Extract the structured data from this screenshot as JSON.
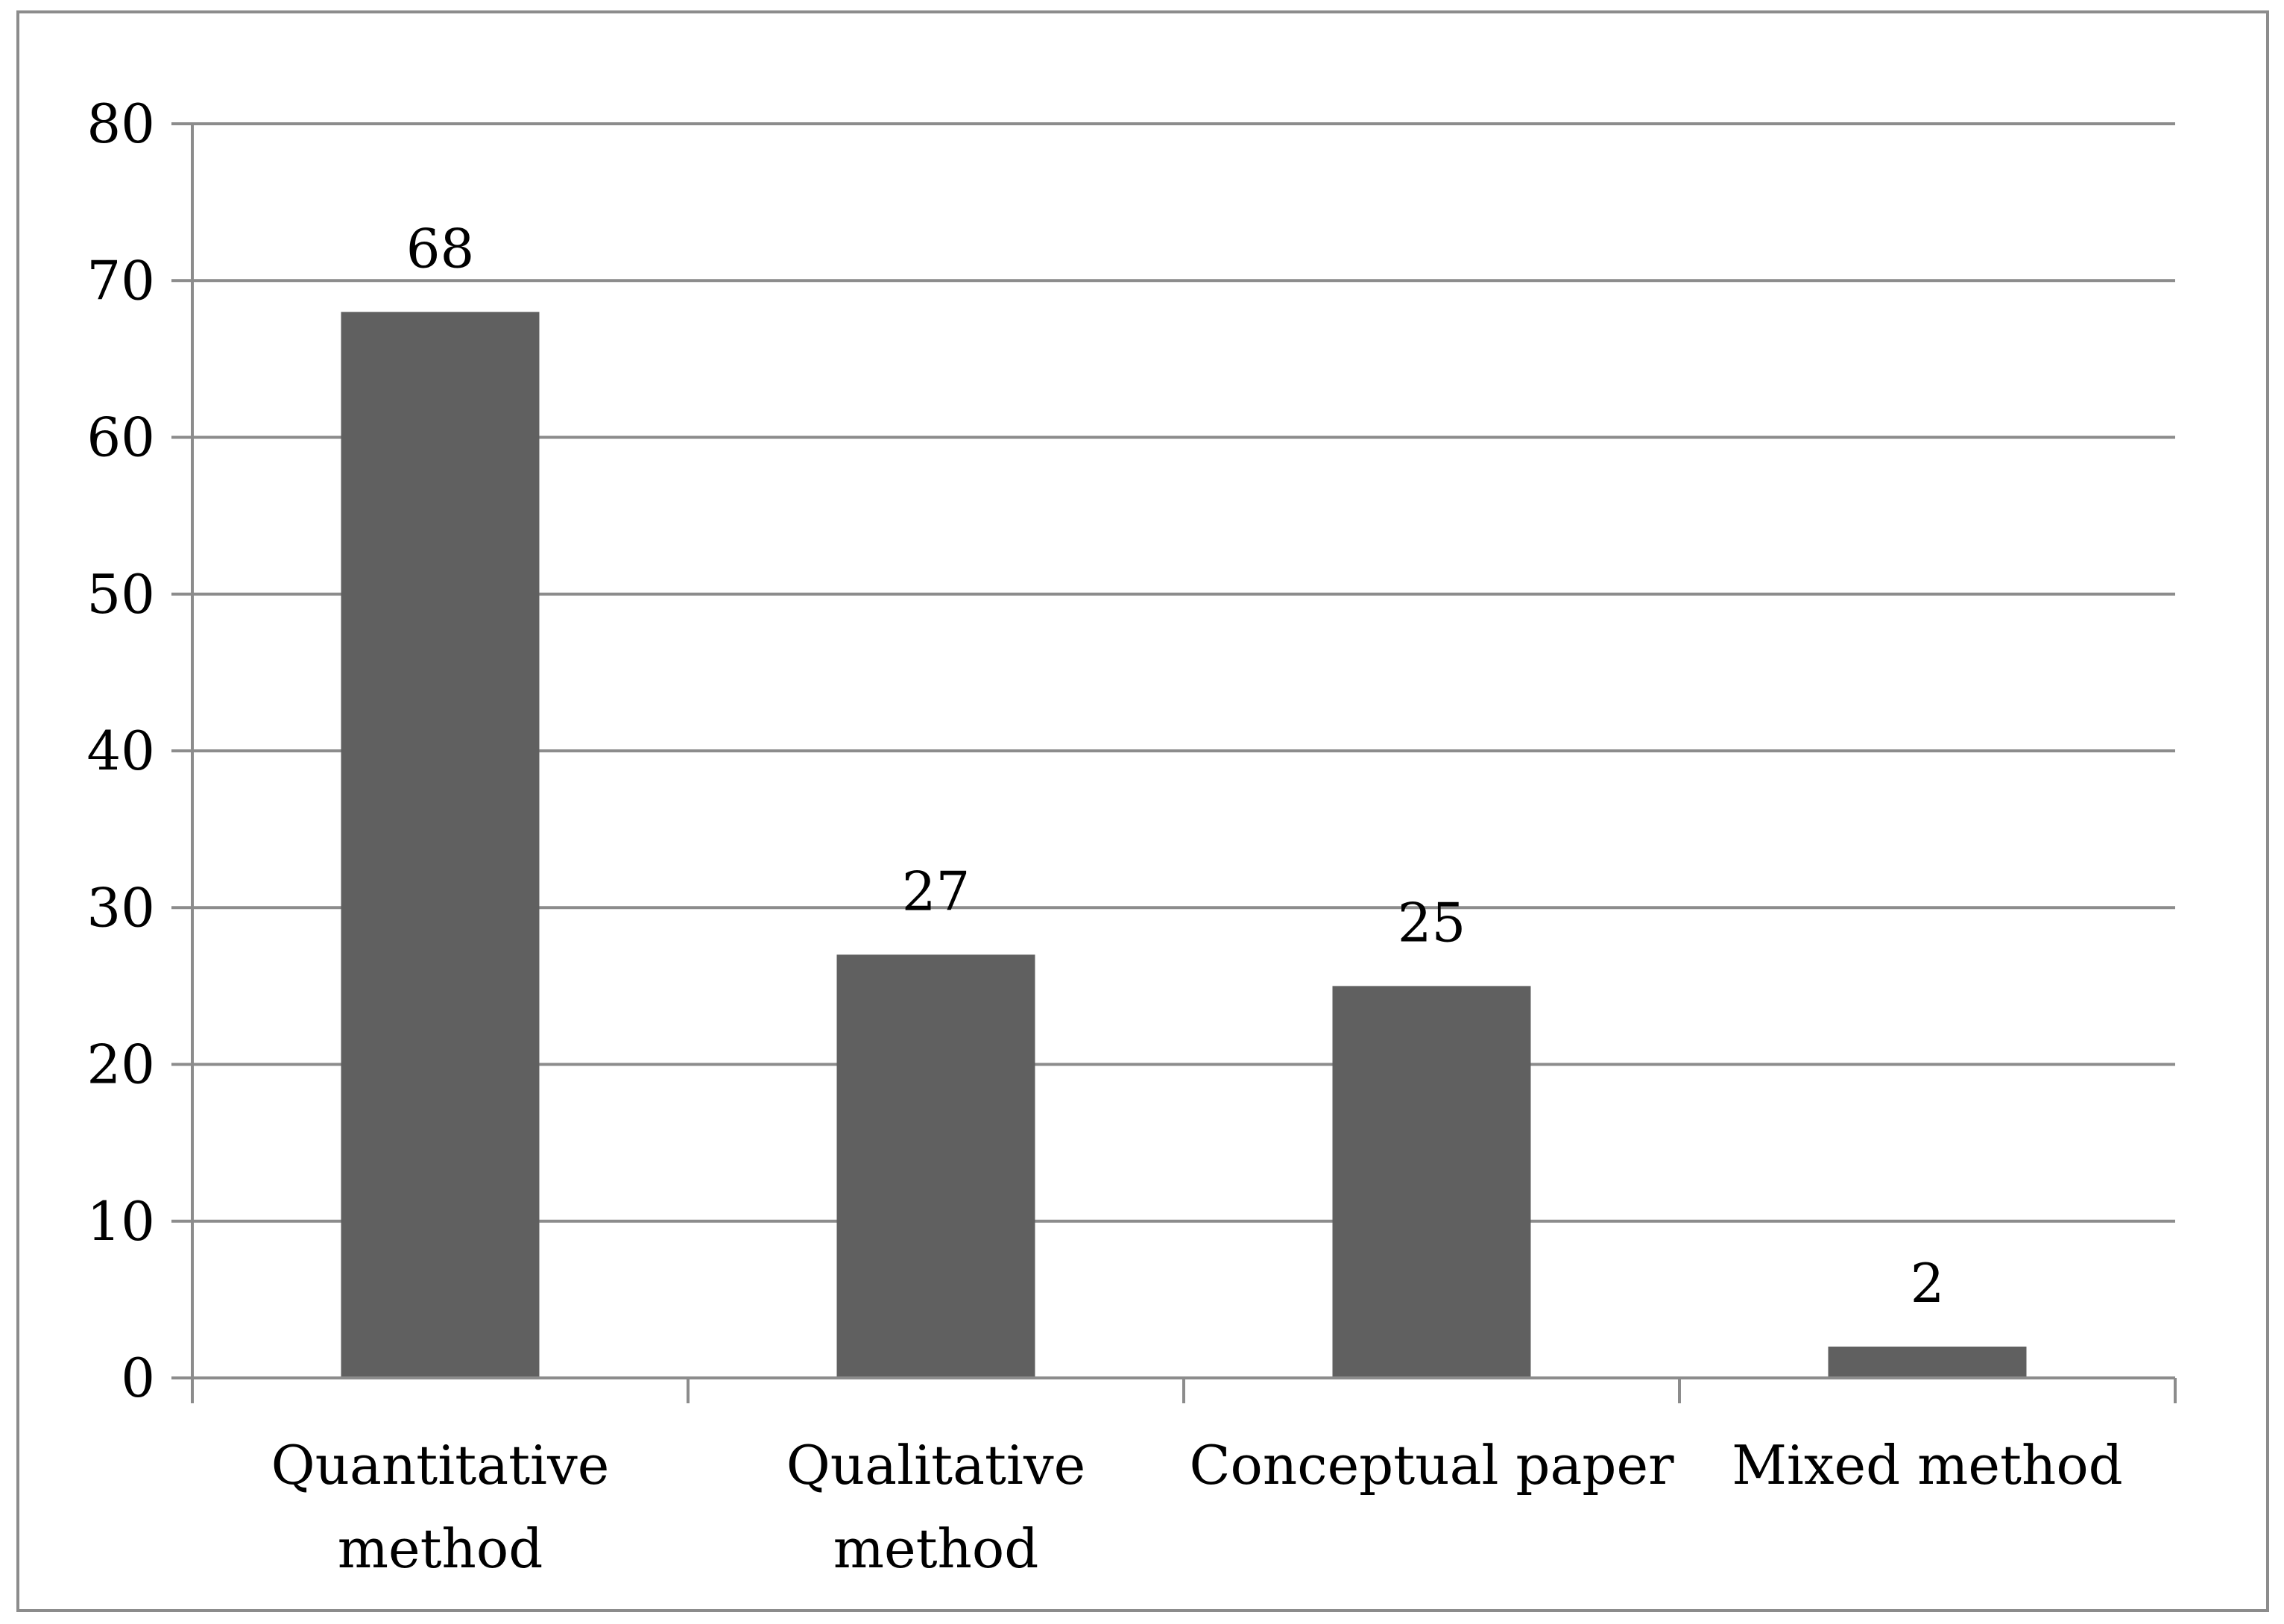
{
  "chart_data": {
    "type": "bar",
    "categories": [
      [
        "Quantitative",
        "method"
      ],
      [
        "Qualitative",
        "method"
      ],
      [
        "Conceptual paper"
      ],
      [
        "Mixed method"
      ]
    ],
    "values": [
      68,
      27,
      25,
      2
    ],
    "data_labels": [
      "68",
      "27",
      "25",
      "2"
    ],
    "ylim": [
      0,
      80
    ],
    "yticks": [
      0,
      10,
      20,
      30,
      40,
      50,
      60,
      70,
      80
    ],
    "grid": true,
    "legend": "none",
    "title": "",
    "xlabel": "",
    "ylabel": ""
  },
  "colors": {
    "bar": "#606060",
    "grid": "#8c8c8c",
    "axis": "#8c8c8c",
    "frame": "#8c8c8c",
    "text": "#000000"
  }
}
